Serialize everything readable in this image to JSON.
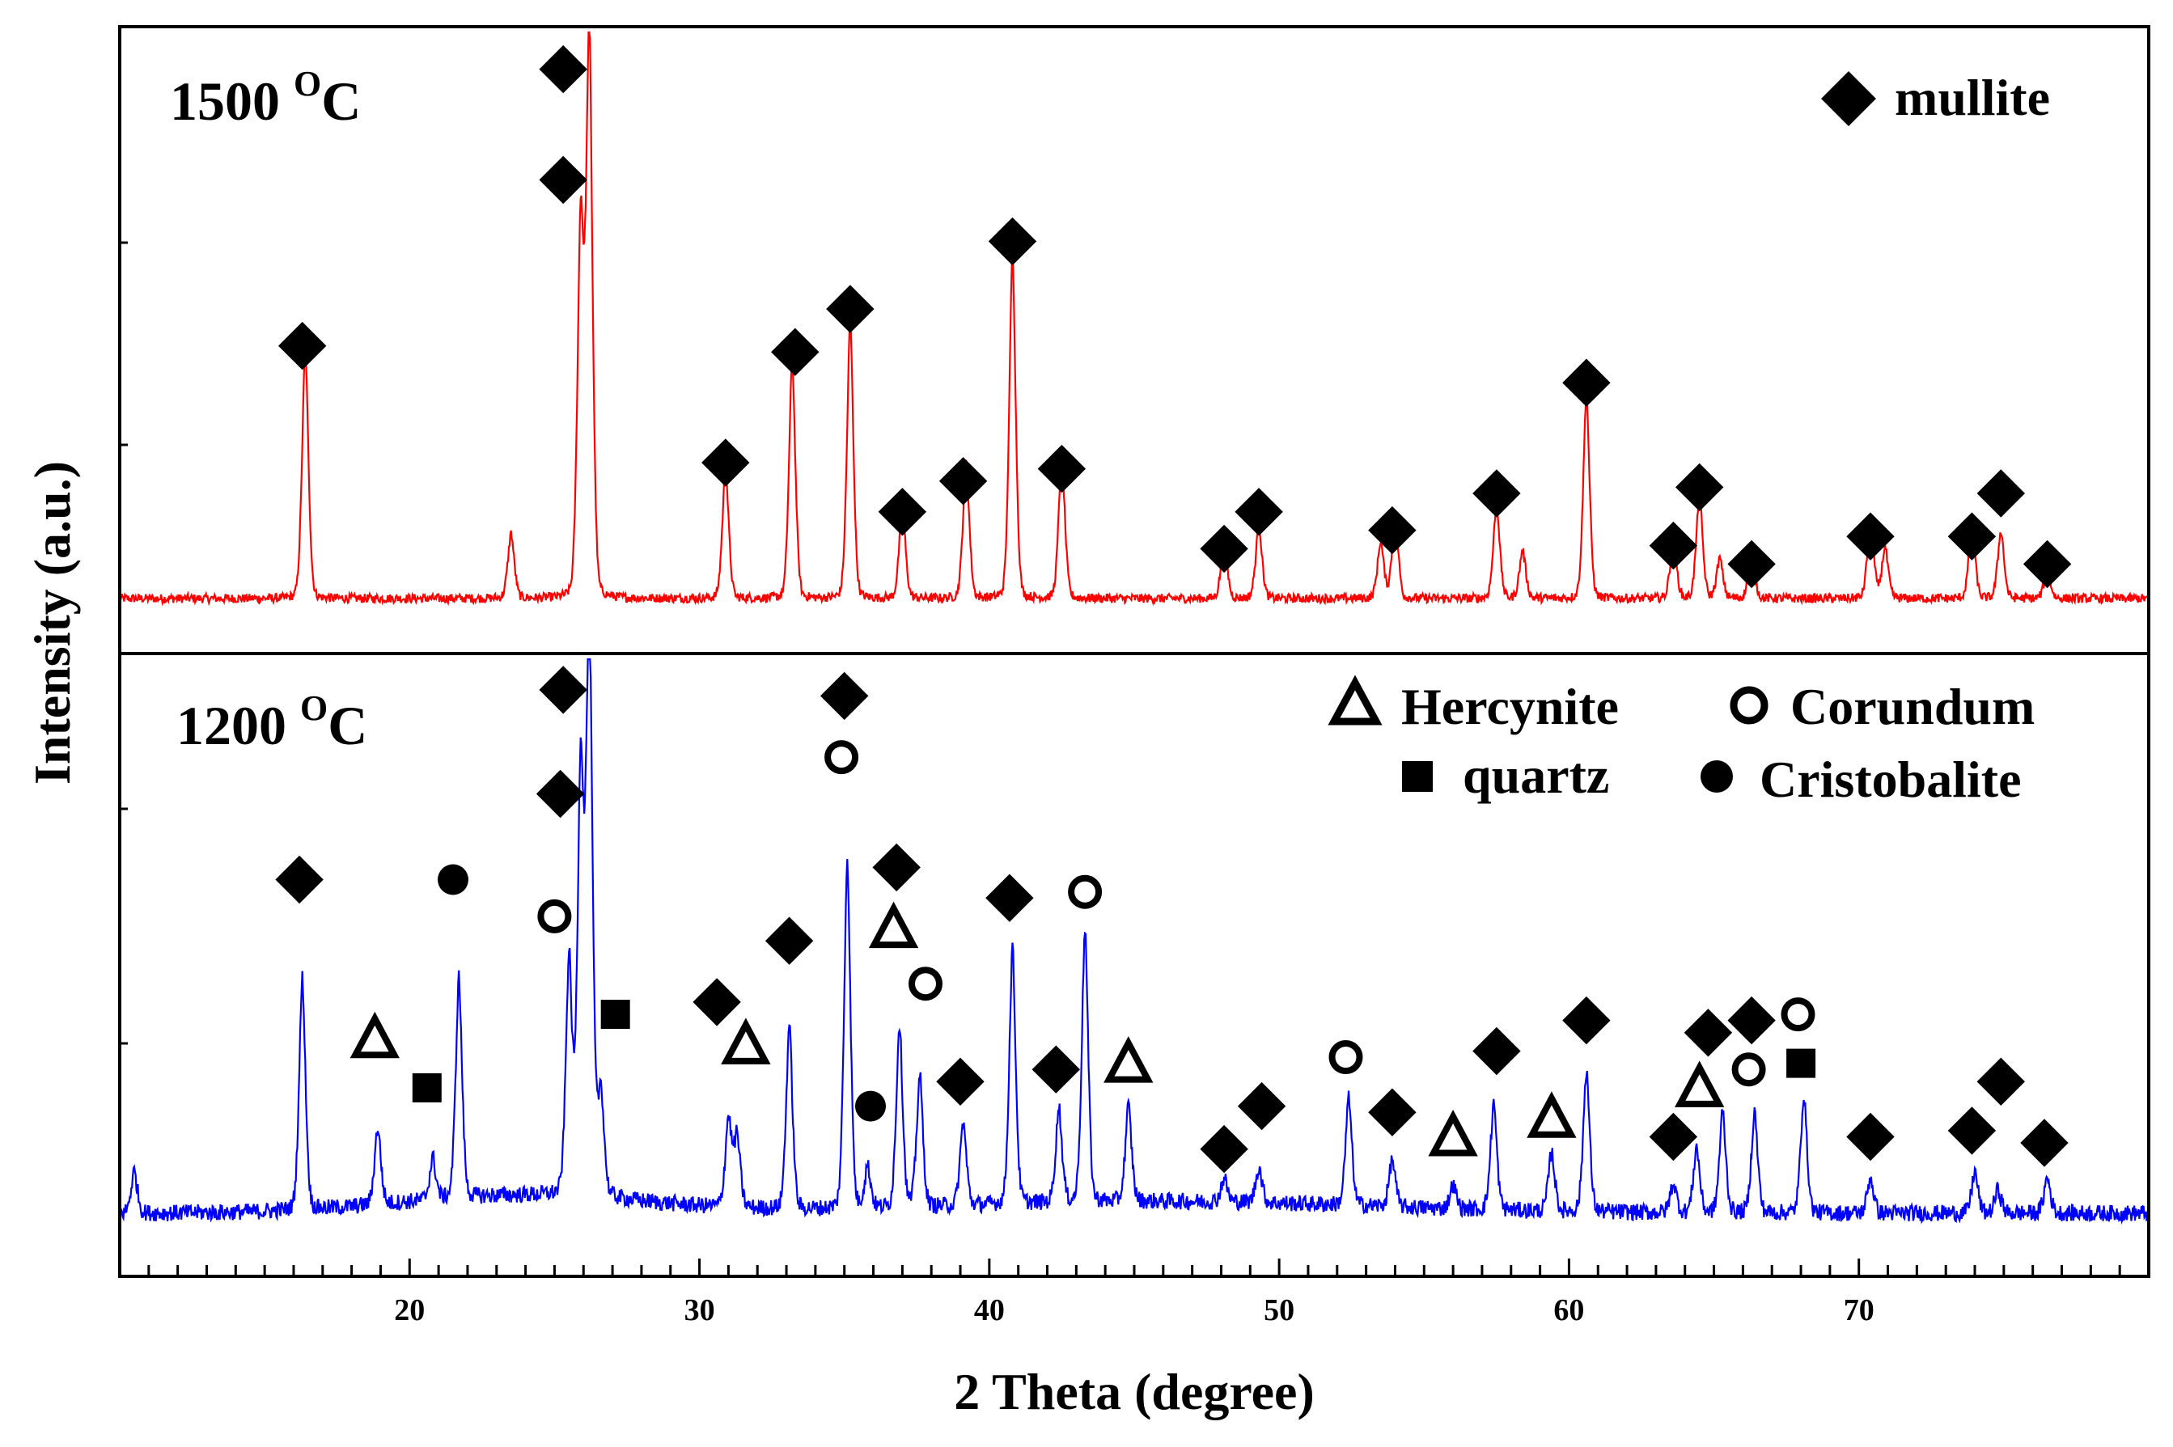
{
  "chart_data": {
    "type": "line",
    "xlabel": "2 Theta (degree)",
    "ylabel": "Intensity (a.u.)",
    "xlim": [
      10,
      80
    ],
    "x_ticks": [
      20,
      30,
      40,
      50,
      60,
      70
    ],
    "x_tick_labels": [
      "20",
      "30",
      "40",
      "50",
      "60",
      "70"
    ],
    "grid": false,
    "panels": [
      {
        "id": "top",
        "label_main": "1500 ",
        "label_sup": "O",
        "label_unit": "C",
        "line_color": "#ff0000",
        "ylim": [
          0,
          1.0
        ],
        "legend": [
          {
            "marker": "diamond",
            "text": "mullite"
          }
        ],
        "baseline": 0.1,
        "peaks": [
          {
            "x": 16.4,
            "y": 0.44
          },
          {
            "x": 23.5,
            "y": 0.115
          },
          {
            "x": 25.9,
            "y": 0.66
          },
          {
            "x": 26.2,
            "y": 1.0
          },
          {
            "x": 30.9,
            "y": 0.23
          },
          {
            "x": 33.2,
            "y": 0.42
          },
          {
            "x": 35.2,
            "y": 0.49
          },
          {
            "x": 37.0,
            "y": 0.16
          },
          {
            "x": 39.2,
            "y": 0.24
          },
          {
            "x": 40.8,
            "y": 0.61
          },
          {
            "x": 42.5,
            "y": 0.25
          },
          {
            "x": 48.1,
            "y": 0.1
          },
          {
            "x": 49.3,
            "y": 0.13
          },
          {
            "x": 53.5,
            "y": 0.1
          },
          {
            "x": 54.0,
            "y": 0.145
          },
          {
            "x": 57.5,
            "y": 0.17
          },
          {
            "x": 58.4,
            "y": 0.085
          },
          {
            "x": 60.6,
            "y": 0.36
          },
          {
            "x": 63.6,
            "y": 0.105
          },
          {
            "x": 64.5,
            "y": 0.185
          },
          {
            "x": 65.2,
            "y": 0.07
          },
          {
            "x": 66.3,
            "y": 0.08
          },
          {
            "x": 70.4,
            "y": 0.14
          },
          {
            "x": 70.9,
            "y": 0.09
          },
          {
            "x": 73.9,
            "y": 0.13
          },
          {
            "x": 74.9,
            "y": 0.12
          },
          {
            "x": 76.5,
            "y": 0.05
          }
        ],
        "markers": [
          {
            "type": "diamond",
            "x": 16.3,
            "y": 0.49
          },
          {
            "type": "diamond",
            "x": 25.3,
            "y": 0.94
          },
          {
            "type": "diamond",
            "x": 25.3,
            "y": 0.76
          },
          {
            "type": "diamond",
            "x": 30.9,
            "y": 0.3
          },
          {
            "type": "diamond",
            "x": 33.3,
            "y": 0.48
          },
          {
            "type": "diamond",
            "x": 35.2,
            "y": 0.55
          },
          {
            "type": "diamond",
            "x": 37.0,
            "y": 0.22
          },
          {
            "type": "diamond",
            "x": 39.1,
            "y": 0.27
          },
          {
            "type": "diamond",
            "x": 40.8,
            "y": 0.66
          },
          {
            "type": "diamond",
            "x": 42.5,
            "y": 0.29
          },
          {
            "type": "diamond",
            "x": 48.1,
            "y": 0.16
          },
          {
            "type": "diamond",
            "x": 49.3,
            "y": 0.22
          },
          {
            "type": "diamond",
            "x": 53.9,
            "y": 0.19
          },
          {
            "type": "diamond",
            "x": 57.5,
            "y": 0.25
          },
          {
            "type": "diamond",
            "x": 60.6,
            "y": 0.43
          },
          {
            "type": "diamond",
            "x": 63.6,
            "y": 0.165
          },
          {
            "type": "diamond",
            "x": 64.5,
            "y": 0.26
          },
          {
            "type": "diamond",
            "x": 66.3,
            "y": 0.135
          },
          {
            "type": "diamond",
            "x": 70.4,
            "y": 0.18
          },
          {
            "type": "diamond",
            "x": 73.9,
            "y": 0.18
          },
          {
            "type": "diamond",
            "x": 74.9,
            "y": 0.25
          },
          {
            "type": "diamond",
            "x": 76.5,
            "y": 0.135
          }
        ]
      },
      {
        "id": "bottom",
        "label_main": "1200 ",
        "label_sup": "O",
        "label_unit": "C",
        "line_color": "#0000ff",
        "ylim": [
          0,
          1.0
        ],
        "legend": [
          {
            "marker": "triangle",
            "text": "Hercynite"
          },
          {
            "marker": "open-circle",
            "text": "Corundum"
          },
          {
            "marker": "square",
            "text": "quartz"
          },
          {
            "marker": "filled-circle",
            "text": "Cristobalite"
          }
        ],
        "baseline": 0.2,
        "peaks": [
          {
            "x": 10.5,
            "y": 0.07
          },
          {
            "x": 16.3,
            "y": 0.39
          },
          {
            "x": 18.9,
            "y": 0.13
          },
          {
            "x": 20.8,
            "y": 0.07
          },
          {
            "x": 21.7,
            "y": 0.37
          },
          {
            "x": 25.5,
            "y": 0.4
          },
          {
            "x": 25.9,
            "y": 0.72
          },
          {
            "x": 26.2,
            "y": 0.98
          },
          {
            "x": 26.6,
            "y": 0.18
          },
          {
            "x": 31.0,
            "y": 0.15
          },
          {
            "x": 31.3,
            "y": 0.12
          },
          {
            "x": 33.1,
            "y": 0.31
          },
          {
            "x": 35.1,
            "y": 0.59
          },
          {
            "x": 35.8,
            "y": 0.07
          },
          {
            "x": 36.9,
            "y": 0.31
          },
          {
            "x": 37.6,
            "y": 0.22
          },
          {
            "x": 39.1,
            "y": 0.14
          },
          {
            "x": 40.8,
            "y": 0.43
          },
          {
            "x": 42.4,
            "y": 0.16
          },
          {
            "x": 43.3,
            "y": 0.46
          },
          {
            "x": 44.8,
            "y": 0.16
          },
          {
            "x": 48.1,
            "y": 0.04
          },
          {
            "x": 49.3,
            "y": 0.06
          },
          {
            "x": 52.4,
            "y": 0.18
          },
          {
            "x": 53.9,
            "y": 0.08
          },
          {
            "x": 56.0,
            "y": 0.04
          },
          {
            "x": 57.4,
            "y": 0.18
          },
          {
            "x": 59.4,
            "y": 0.1
          },
          {
            "x": 60.6,
            "y": 0.24
          },
          {
            "x": 63.6,
            "y": 0.05
          },
          {
            "x": 64.4,
            "y": 0.11
          },
          {
            "x": 65.3,
            "y": 0.17
          },
          {
            "x": 66.4,
            "y": 0.17
          },
          {
            "x": 68.1,
            "y": 0.2
          },
          {
            "x": 70.4,
            "y": 0.06
          },
          {
            "x": 74.0,
            "y": 0.07
          },
          {
            "x": 74.8,
            "y": 0.04
          },
          {
            "x": 76.5,
            "y": 0.06
          }
        ],
        "markers": [
          {
            "type": "diamond",
            "x": 16.2,
            "y": 0.64
          },
          {
            "type": "triangle",
            "x": 18.8,
            "y": 0.38
          },
          {
            "type": "square",
            "x": 20.6,
            "y": 0.3
          },
          {
            "type": "filled-circle",
            "x": 21.5,
            "y": 0.64
          },
          {
            "type": "open-circle",
            "x": 25.0,
            "y": 0.58
          },
          {
            "type": "diamond",
            "x": 25.3,
            "y": 0.95
          },
          {
            "type": "diamond",
            "x": 25.2,
            "y": 0.78
          },
          {
            "type": "square",
            "x": 27.1,
            "y": 0.42
          },
          {
            "type": "diamond",
            "x": 30.6,
            "y": 0.44
          },
          {
            "type": "triangle",
            "x": 31.6,
            "y": 0.37
          },
          {
            "type": "diamond",
            "x": 33.1,
            "y": 0.54
          },
          {
            "type": "open-circle",
            "x": 34.9,
            "y": 0.84
          },
          {
            "type": "diamond",
            "x": 35.0,
            "y": 0.94
          },
          {
            "type": "filled-circle",
            "x": 35.9,
            "y": 0.27
          },
          {
            "type": "triangle",
            "x": 36.7,
            "y": 0.56
          },
          {
            "type": "diamond",
            "x": 36.8,
            "y": 0.66
          },
          {
            "type": "open-circle",
            "x": 37.8,
            "y": 0.47
          },
          {
            "type": "diamond",
            "x": 39.0,
            "y": 0.31
          },
          {
            "type": "diamond",
            "x": 40.7,
            "y": 0.61
          },
          {
            "type": "diamond",
            "x": 42.3,
            "y": 0.33
          },
          {
            "type": "open-circle",
            "x": 43.3,
            "y": 0.62
          },
          {
            "type": "triangle",
            "x": 44.8,
            "y": 0.34
          },
          {
            "type": "diamond",
            "x": 48.1,
            "y": 0.2
          },
          {
            "type": "diamond",
            "x": 49.4,
            "y": 0.27
          },
          {
            "type": "open-circle",
            "x": 52.3,
            "y": 0.35
          },
          {
            "type": "diamond",
            "x": 53.9,
            "y": 0.26
          },
          {
            "type": "triangle",
            "x": 56.0,
            "y": 0.22
          },
          {
            "type": "diamond",
            "x": 57.5,
            "y": 0.36
          },
          {
            "type": "triangle",
            "x": 59.4,
            "y": 0.25
          },
          {
            "type": "diamond",
            "x": 60.6,
            "y": 0.41
          },
          {
            "type": "diamond",
            "x": 63.6,
            "y": 0.22
          },
          {
            "type": "triangle",
            "x": 64.5,
            "y": 0.3
          },
          {
            "type": "diamond",
            "x": 64.8,
            "y": 0.39
          },
          {
            "type": "open-circle",
            "x": 66.2,
            "y": 0.33
          },
          {
            "type": "diamond",
            "x": 66.3,
            "y": 0.41
          },
          {
            "type": "open-circle",
            "x": 67.9,
            "y": 0.42
          },
          {
            "type": "square",
            "x": 68.0,
            "y": 0.34
          },
          {
            "type": "diamond",
            "x": 70.4,
            "y": 0.22
          },
          {
            "type": "diamond",
            "x": 73.9,
            "y": 0.23
          },
          {
            "type": "diamond",
            "x": 74.9,
            "y": 0.31
          },
          {
            "type": "diamond",
            "x": 76.4,
            "y": 0.21
          }
        ]
      }
    ]
  }
}
